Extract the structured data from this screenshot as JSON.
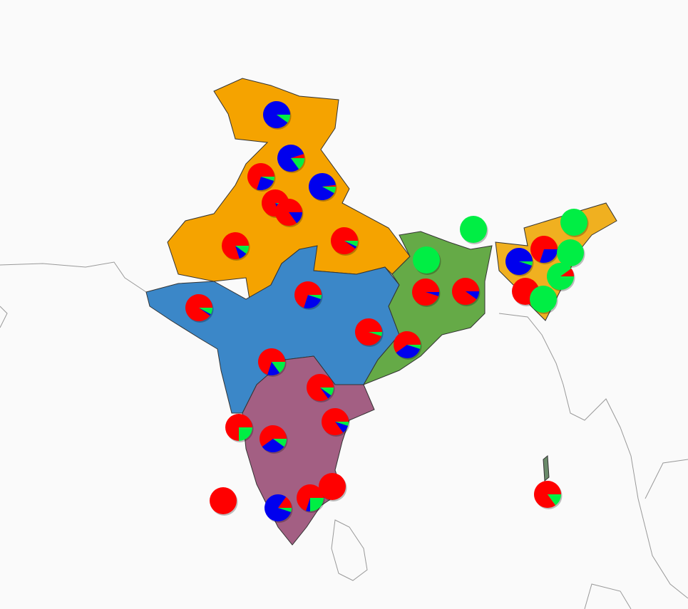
{
  "chart_data": {
    "type": "pie",
    "colors": [
      "#ff0000",
      "#0000ee",
      "#00ee44"
    ],
    "pies": [
      {
        "values": [
          0,
          90,
          10
        ]
      },
      {
        "values": [
          5,
          80,
          15
        ]
      },
      {
        "values": [
          70,
          25,
          5
        ]
      },
      {
        "values": [
          2,
          90,
          8
        ]
      },
      {
        "values": [
          80,
          15,
          5
        ]
      },
      {
        "values": [
          85,
          15,
          0
        ]
      },
      {
        "values": [
          80,
          10,
          10
        ]
      },
      {
        "values": [
          90,
          3,
          7
        ]
      },
      {
        "values": [
          90,
          2,
          8
        ]
      },
      {
        "values": [
          70,
          25,
          5
        ]
      },
      {
        "values": [
          95,
          0,
          5
        ]
      },
      {
        "values": [
          70,
          15,
          15
        ]
      },
      {
        "values": [
          0,
          0,
          100
        ]
      },
      {
        "values": [
          0,
          0,
          100
        ]
      },
      {
        "values": [
          95,
          5,
          0
        ]
      },
      {
        "values": [
          90,
          10,
          0
        ]
      },
      {
        "values": [
          60,
          35,
          5
        ]
      },
      {
        "values": [
          85,
          5,
          10
        ]
      },
      {
        "values": [
          85,
          10,
          5
        ]
      },
      {
        "values": [
          75,
          0,
          25
        ]
      },
      {
        "values": [
          60,
          30,
          10
        ]
      },
      {
        "values": [
          100,
          0,
          0
        ]
      },
      {
        "values": [
          15,
          80,
          5
        ]
      },
      {
        "values": [
          70,
          5,
          25
        ]
      },
      {
        "values": [
          100,
          0,
          0
        ]
      },
      {
        "values": [
          0,
          0,
          100
        ]
      },
      {
        "values": [
          70,
          30,
          0
        ]
      },
      {
        "values": [
          0,
          95,
          5
        ]
      },
      {
        "values": [
          0,
          0,
          100
        ]
      },
      {
        "values": [
          10,
          0,
          90
        ]
      },
      {
        "values": [
          100,
          0,
          0
        ]
      },
      {
        "values": [
          0,
          0,
          100
        ]
      },
      {
        "values": [
          85,
          0,
          15
        ]
      }
    ]
  }
}
